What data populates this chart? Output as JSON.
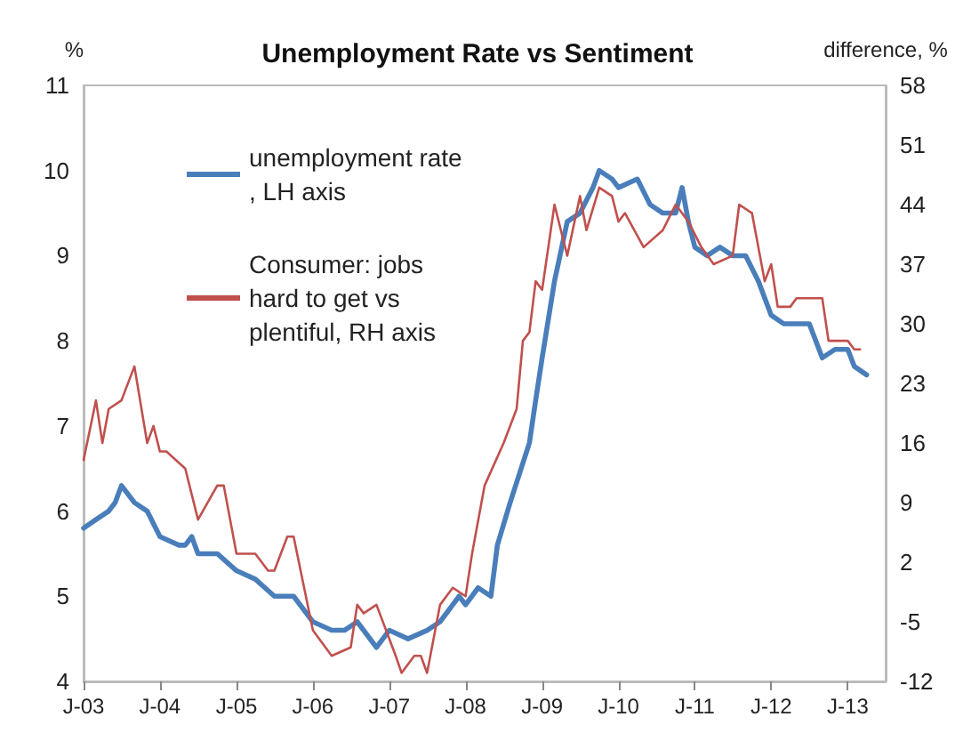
{
  "chart_data": {
    "type": "line",
    "title": "Unemployment Rate vs Sentiment",
    "ylabel": "%",
    "y2label": "difference, %",
    "xlim": [
      "2003-01",
      "2013-07"
    ],
    "xticks": [
      {
        "value": "2003-01",
        "label": "J-03"
      },
      {
        "value": "2004-01",
        "label": "J-04"
      },
      {
        "value": "2005-01",
        "label": "J-05"
      },
      {
        "value": "2006-01",
        "label": "J-06"
      },
      {
        "value": "2007-01",
        "label": "J-07"
      },
      {
        "value": "2008-01",
        "label": "J-08"
      },
      {
        "value": "2009-01",
        "label": "J-09"
      },
      {
        "value": "2010-01",
        "label": "J-10"
      },
      {
        "value": "2011-01",
        "label": "J-11"
      },
      {
        "value": "2012-01",
        "label": "J-12"
      },
      {
        "value": "2013-01",
        "label": "J-13"
      }
    ],
    "ylim": [
      4,
      11
    ],
    "yticks": [
      4,
      5,
      6,
      7,
      8,
      9,
      10,
      11
    ],
    "y2lim": [
      -12,
      58
    ],
    "y2ticks": [
      -12,
      -5,
      2,
      9,
      16,
      23,
      30,
      37,
      44,
      51,
      58
    ],
    "grid": false,
    "legend": "top left",
    "marker": "none",
    "line_style": "solid",
    "series": [
      {
        "name": "unemployment rate, LH axis",
        "color": "#4a7ebb",
        "x": [
          "2003-01",
          "2003-03",
          "2003-05",
          "2003-06",
          "2003-07",
          "2003-09",
          "2003-11",
          "2004-01",
          "2004-04",
          "2004-05",
          "2004-06",
          "2004-07",
          "2004-10",
          "2005-01",
          "2005-04",
          "2005-07",
          "2005-10",
          "2006-01",
          "2006-04",
          "2006-06",
          "2006-08",
          "2006-11",
          "2007-01",
          "2007-04",
          "2007-07",
          "2007-09",
          "2007-12",
          "2008-01",
          "2008-03",
          "2008-05",
          "2008-06",
          "2008-08",
          "2008-11",
          "2008-12",
          "2009-01",
          "2009-03",
          "2009-05",
          "2009-07",
          "2009-09",
          "2009-10",
          "2009-12",
          "2010-01",
          "2010-04",
          "2010-06",
          "2010-08",
          "2010-10",
          "2010-11",
          "2010-12",
          "2011-01",
          "2011-03",
          "2011-05",
          "2011-07",
          "2011-09",
          "2011-11",
          "2012-01",
          "2012-03",
          "2012-05",
          "2012-07",
          "2012-09",
          "2012-11",
          "2013-01",
          "2013-02",
          "2013-04"
        ],
        "values": [
          5.8,
          5.9,
          6.0,
          6.1,
          6.3,
          6.1,
          6.0,
          5.7,
          5.6,
          5.6,
          5.7,
          5.5,
          5.5,
          5.3,
          5.2,
          5.0,
          5.0,
          4.7,
          4.6,
          4.6,
          4.7,
          4.4,
          4.6,
          4.5,
          4.6,
          4.7,
          5.0,
          4.9,
          5.1,
          5.0,
          5.6,
          6.1,
          6.8,
          7.3,
          7.8,
          8.7,
          9.4,
          9.5,
          9.8,
          10.0,
          9.9,
          9.8,
          9.9,
          9.6,
          9.5,
          9.5,
          9.8,
          9.4,
          9.1,
          9.0,
          9.1,
          9.0,
          9.0,
          8.7,
          8.3,
          8.2,
          8.2,
          8.2,
          7.8,
          7.9,
          7.9,
          7.7,
          7.6
        ]
      },
      {
        "name": "Consumer: jobs hard to get vs plentiful, RH axis",
        "color": "#c0504d",
        "axis": "y2",
        "x": [
          "2003-01",
          "2003-03",
          "2003-04",
          "2003-05",
          "2003-07",
          "2003-09",
          "2003-11",
          "2003-12",
          "2004-01",
          "2004-02",
          "2004-05",
          "2004-07",
          "2004-10",
          "2004-11",
          "2005-01",
          "2005-04",
          "2005-06",
          "2005-07",
          "2005-09",
          "2005-10",
          "2006-01",
          "2006-04",
          "2006-07",
          "2006-08",
          "2006-09",
          "2006-11",
          "2007-02",
          "2007-03",
          "2007-05",
          "2007-06",
          "2007-07",
          "2007-09",
          "2007-11",
          "2008-01",
          "2008-02",
          "2008-04",
          "2008-07",
          "2008-09",
          "2008-10",
          "2008-11",
          "2008-12",
          "2009-01",
          "2009-03",
          "2009-05",
          "2009-07",
          "2009-08",
          "2009-10",
          "2009-12",
          "2010-01",
          "2010-02",
          "2010-05",
          "2010-08",
          "2010-10",
          "2010-12",
          "2011-02",
          "2011-04",
          "2011-07",
          "2011-08",
          "2011-10",
          "2011-12",
          "2012-01",
          "2012-02",
          "2012-04",
          "2012-05",
          "2012-09",
          "2012-10",
          "2012-12",
          "2013-01",
          "2013-02",
          "2013-03"
        ],
        "values": [
          14,
          21,
          16,
          20,
          21,
          25,
          16,
          18,
          15,
          15,
          13,
          7,
          11,
          11,
          3,
          3,
          1,
          1,
          5,
          5,
          -6,
          -9,
          -8,
          -3,
          -4,
          -3,
          -9,
          -11,
          -9,
          -9,
          -11,
          -3,
          -1,
          -2,
          3,
          11,
          16,
          20,
          28,
          29,
          35,
          34,
          44,
          38,
          45,
          41,
          46,
          45,
          42,
          43,
          39,
          41,
          44,
          42,
          39,
          37,
          38,
          44,
          43,
          35,
          37,
          32,
          32,
          33,
          33,
          28,
          28,
          28,
          27,
          27
        ]
      }
    ]
  }
}
